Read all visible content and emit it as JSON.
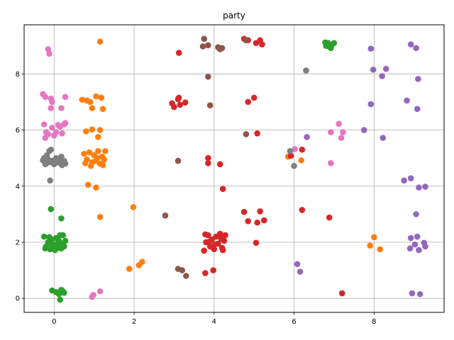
{
  "chart_data": {
    "type": "scatter",
    "title": "party",
    "xlabel": "",
    "ylabel": "",
    "xlim": [
      -0.75,
      9.75
    ],
    "ylim": [
      -0.5,
      9.75
    ],
    "xticks": [
      0,
      2,
      4,
      6,
      8
    ],
    "yticks": [
      0,
      2,
      4,
      6,
      8
    ],
    "grid": true,
    "legend": "none",
    "series": [
      {
        "color": "#2ca02c",
        "points": [
          [
            -0.25,
            2.2
          ],
          [
            -0.2,
            1.85
          ],
          [
            -0.15,
            2.0
          ],
          [
            -0.1,
            1.75
          ],
          [
            -0.05,
            2.1
          ],
          [
            0.0,
            1.9
          ],
          [
            0.05,
            2.15
          ],
          [
            0.1,
            1.8
          ],
          [
            0.15,
            2.25
          ],
          [
            0.2,
            1.95
          ],
          [
            0.25,
            1.85
          ],
          [
            0.28,
            2.05
          ],
          [
            -0.22,
            1.78
          ],
          [
            -0.12,
            2.18
          ],
          [
            0.02,
            1.72
          ],
          [
            0.12,
            2.05
          ],
          [
            0.22,
            2.25
          ],
          [
            -0.08,
            1.95
          ],
          [
            0.18,
            1.78
          ],
          [
            0.08,
            1.95
          ],
          [
            -0.08,
            3.18
          ],
          [
            0.18,
            2.85
          ],
          [
            -0.05,
            0.28
          ],
          [
            0.05,
            0.22
          ],
          [
            0.12,
            0.15
          ],
          [
            0.18,
            0.3
          ],
          [
            0.25,
            0.2
          ],
          [
            0.15,
            -0.05
          ],
          [
            0.22,
            0.25
          ],
          [
            6.8,
            9.0
          ],
          [
            6.85,
            9.1
          ],
          [
            6.9,
            8.95
          ],
          [
            6.95,
            9.05
          ],
          [
            7.0,
            9.1
          ],
          [
            6.78,
            9.12
          ],
          [
            6.92,
            8.92
          ]
        ]
      },
      {
        "color": "#ff7f0e",
        "points": [
          [
            1.15,
            9.15
          ],
          [
            0.7,
            7.08
          ],
          [
            0.82,
            7.05
          ],
          [
            0.9,
            7.0
          ],
          [
            1.05,
            7.2
          ],
          [
            1.18,
            7.15
          ],
          [
            0.95,
            6.78
          ],
          [
            1.22,
            6.75
          ],
          [
            0.8,
            5.95
          ],
          [
            0.95,
            6.02
          ],
          [
            1.15,
            6.0
          ],
          [
            1.1,
            5.75
          ],
          [
            0.75,
            5.15
          ],
          [
            0.82,
            4.95
          ],
          [
            0.88,
            5.2
          ],
          [
            0.95,
            4.85
          ],
          [
            1.0,
            5.1
          ],
          [
            1.05,
            4.9
          ],
          [
            1.1,
            5.25
          ],
          [
            1.15,
            4.8
          ],
          [
            1.2,
            5.05
          ],
          [
            1.25,
            4.95
          ],
          [
            1.28,
            5.25
          ],
          [
            0.78,
            4.82
          ],
          [
            1.08,
            5.0
          ],
          [
            1.22,
            4.75
          ],
          [
            0.92,
            4.72
          ],
          [
            0.85,
            4.05
          ],
          [
            1.05,
            3.95
          ],
          [
            1.15,
            2.9
          ],
          [
            1.98,
            3.25
          ],
          [
            1.88,
            1.05
          ],
          [
            2.12,
            1.18
          ],
          [
            2.2,
            1.3
          ],
          [
            5.85,
            5.05
          ],
          [
            6.18,
            4.92
          ],
          [
            7.9,
            1.88
          ],
          [
            8.0,
            2.18
          ],
          [
            8.15,
            1.75
          ]
        ]
      },
      {
        "color": "#d62728",
        "points": [
          [
            3.12,
            8.75
          ],
          [
            4.75,
            9.25
          ],
          [
            4.85,
            9.2
          ],
          [
            5.05,
            9.1
          ],
          [
            5.15,
            9.2
          ],
          [
            5.2,
            9.05
          ],
          [
            2.95,
            6.95
          ],
          [
            3.0,
            6.82
          ],
          [
            3.1,
            7.1
          ],
          [
            3.12,
            7.15
          ],
          [
            3.15,
            6.9
          ],
          [
            3.28,
            6.98
          ],
          [
            4.85,
            7.0
          ],
          [
            5.0,
            7.15
          ],
          [
            5.08,
            5.88
          ],
          [
            3.85,
            5.0
          ],
          [
            3.85,
            4.82
          ],
          [
            4.15,
            4.78
          ],
          [
            4.22,
            3.9
          ],
          [
            6.2,
            5.3
          ],
          [
            5.92,
            5.08
          ],
          [
            3.75,
            1.7
          ],
          [
            3.8,
            2.0
          ],
          [
            3.85,
            2.25
          ],
          [
            3.9,
            1.85
          ],
          [
            3.95,
            2.1
          ],
          [
            4.0,
            1.75
          ],
          [
            4.05,
            2.2
          ],
          [
            4.1,
            1.95
          ],
          [
            4.15,
            2.3
          ],
          [
            4.2,
            1.8
          ],
          [
            4.25,
            2.05
          ],
          [
            4.28,
            2.25
          ],
          [
            3.78,
            2.28
          ],
          [
            4.02,
            1.92
          ],
          [
            4.18,
            2.12
          ],
          [
            3.88,
            2.02
          ],
          [
            4.22,
            1.72
          ],
          [
            4.75,
            3.08
          ],
          [
            4.85,
            2.75
          ],
          [
            5.08,
            2.7
          ],
          [
            5.15,
            3.1
          ],
          [
            5.25,
            2.78
          ],
          [
            5.05,
            1.98
          ],
          [
            6.2,
            3.15
          ],
          [
            6.88,
            2.88
          ],
          [
            3.78,
            0.9
          ],
          [
            3.98,
            1.0
          ],
          [
            7.2,
            0.18
          ]
        ]
      },
      {
        "color": "#8c564b",
        "points": [
          [
            3.75,
            9.25
          ],
          [
            3.72,
            8.98
          ],
          [
            3.85,
            9.02
          ],
          [
            4.1,
            8.95
          ],
          [
            4.15,
            8.88
          ],
          [
            4.2,
            8.92
          ],
          [
            4.8,
            9.2
          ],
          [
            3.85,
            7.9
          ],
          [
            3.9,
            6.88
          ],
          [
            4.8,
            5.85
          ],
          [
            3.1,
            4.9
          ],
          [
            2.78,
            2.95
          ],
          [
            3.1,
            1.05
          ],
          [
            3.2,
            1.0
          ],
          [
            3.3,
            0.8
          ]
        ]
      },
      {
        "color": "#9467bd",
        "points": [
          [
            8.92,
            9.05
          ],
          [
            9.05,
            8.92
          ],
          [
            7.92,
            8.9
          ],
          [
            7.98,
            8.15
          ],
          [
            8.2,
            7.92
          ],
          [
            8.3,
            8.18
          ],
          [
            9.1,
            7.82
          ],
          [
            7.92,
            6.92
          ],
          [
            8.82,
            7.05
          ],
          [
            9.08,
            6.75
          ],
          [
            7.75,
            6.0
          ],
          [
            8.22,
            5.72
          ],
          [
            6.32,
            5.75
          ],
          [
            8.75,
            4.2
          ],
          [
            8.92,
            4.28
          ],
          [
            9.12,
            3.95
          ],
          [
            9.28,
            3.98
          ],
          [
            9.05,
            3.0
          ],
          [
            8.92,
            2.15
          ],
          [
            9.08,
            2.2
          ],
          [
            9.25,
            1.98
          ],
          [
            8.9,
            1.78
          ],
          [
            9.02,
            1.92
          ],
          [
            9.12,
            1.72
          ],
          [
            9.28,
            1.85
          ],
          [
            6.08,
            1.22
          ],
          [
            6.15,
            0.95
          ],
          [
            8.95,
            0.18
          ],
          [
            9.15,
            0.15
          ]
        ]
      },
      {
        "color": "#e377c2",
        "points": [
          [
            -0.15,
            8.88
          ],
          [
            -0.12,
            8.72
          ],
          [
            -0.28,
            7.28
          ],
          [
            -0.22,
            7.18
          ],
          [
            -0.08,
            7.12
          ],
          [
            -0.05,
            7.0
          ],
          [
            0.18,
            6.78
          ],
          [
            0.28,
            7.18
          ],
          [
            -0.08,
            6.78
          ],
          [
            -0.25,
            6.2
          ],
          [
            -0.2,
            5.92
          ],
          [
            -0.15,
            5.85
          ],
          [
            -0.05,
            6.08
          ],
          [
            0.05,
            5.92
          ],
          [
            0.1,
            6.18
          ],
          [
            0.15,
            6.12
          ],
          [
            0.2,
            5.88
          ],
          [
            0.25,
            6.2
          ],
          [
            0.28,
            6.25
          ],
          [
            -0.22,
            5.72
          ],
          [
            0.0,
            5.8
          ],
          [
            6.02,
            5.32
          ],
          [
            7.12,
            6.22
          ],
          [
            7.22,
            5.92
          ],
          [
            6.92,
            5.92
          ],
          [
            7.18,
            5.72
          ],
          [
            6.92,
            4.82
          ],
          [
            0.95,
            0.05
          ],
          [
            0.98,
            0.12
          ],
          [
            1.15,
            0.25
          ]
        ]
      },
      {
        "color": "#7f7f7f",
        "points": [
          [
            -0.28,
            4.92
          ],
          [
            -0.25,
            5.0
          ],
          [
            -0.2,
            4.8
          ],
          [
            -0.18,
            5.1
          ],
          [
            -0.15,
            4.95
          ],
          [
            -0.12,
            5.25
          ],
          [
            -0.1,
            4.85
          ],
          [
            -0.08,
            5.3
          ],
          [
            -0.05,
            4.9
          ],
          [
            0.0,
            4.78
          ],
          [
            0.05,
            5.0
          ],
          [
            0.1,
            4.85
          ],
          [
            0.12,
            4.95
          ],
          [
            0.18,
            5.05
          ],
          [
            0.2,
            4.75
          ],
          [
            0.25,
            4.9
          ],
          [
            0.28,
            4.8
          ],
          [
            -0.22,
            4.78
          ],
          [
            0.15,
            4.82
          ],
          [
            -0.1,
            4.2
          ],
          [
            6.3,
            8.12
          ],
          [
            5.9,
            5.25
          ],
          [
            6.0,
            4.72
          ]
        ]
      }
    ]
  }
}
